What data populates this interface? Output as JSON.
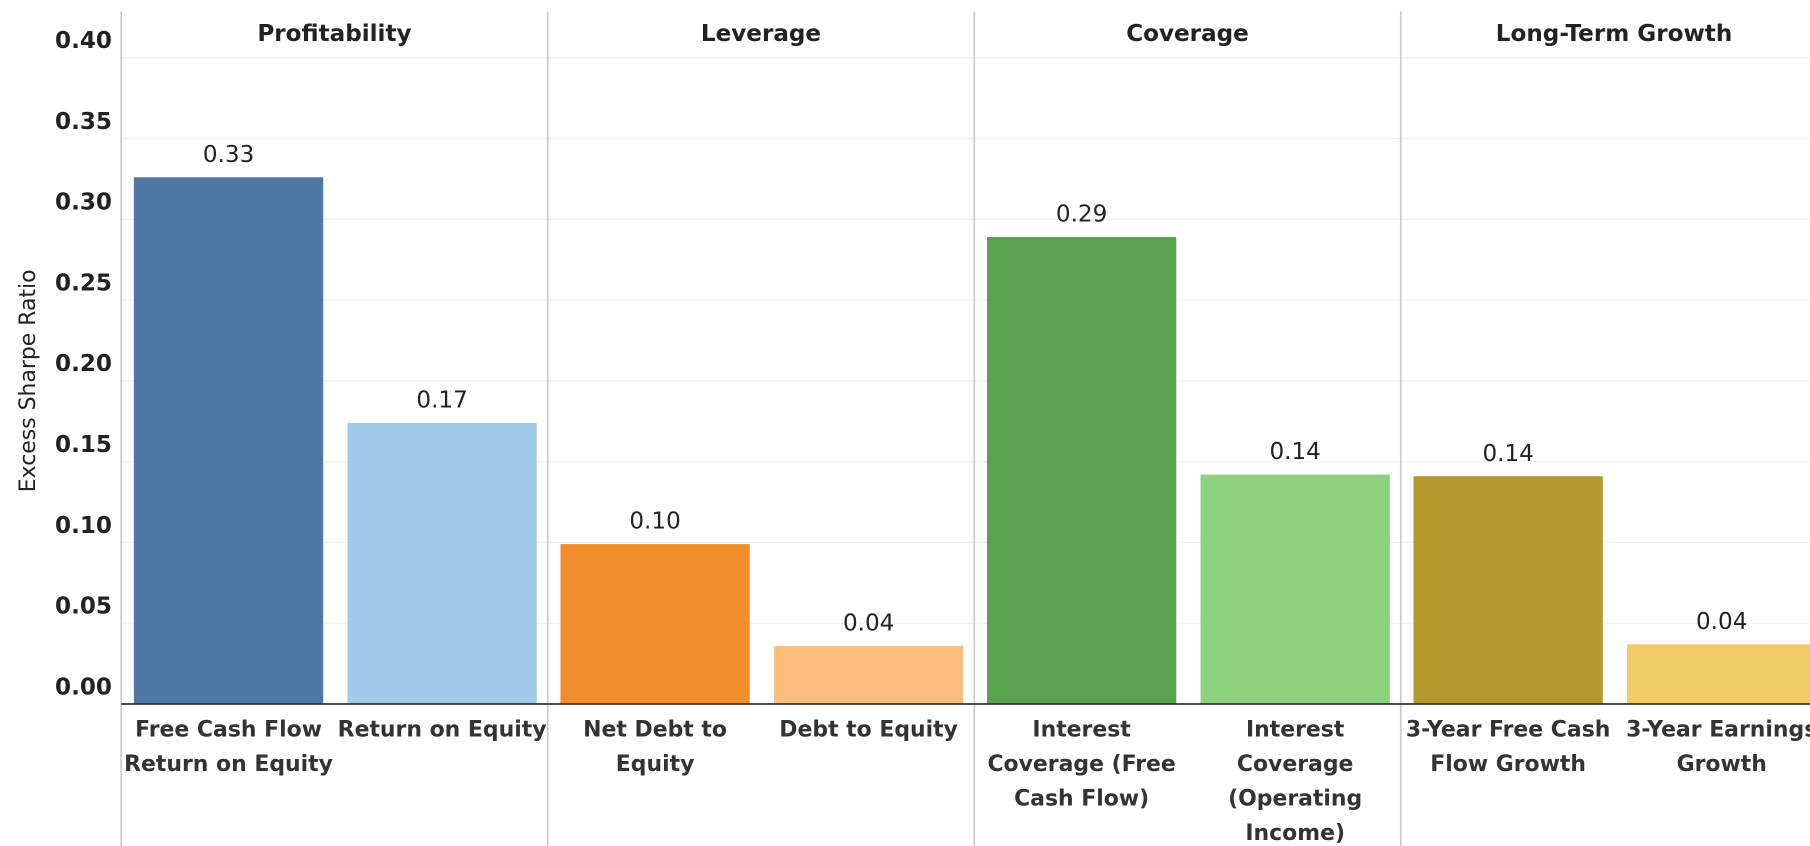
{
  "chart_data": {
    "type": "bar",
    "y_label": "Excess Sharpe Ratio",
    "ylim": [
      0,
      0.4
    ],
    "yticks": [
      {
        "value": 0,
        "label": "0.00"
      },
      {
        "value": 0.05,
        "label": "0.05"
      },
      {
        "value": 0.1,
        "label": "0.10"
      },
      {
        "value": 0.15,
        "label": "0.15"
      },
      {
        "value": 0.2,
        "label": "0.20"
      },
      {
        "value": 0.25,
        "label": "0.25"
      },
      {
        "value": 0.3,
        "label": "0.30"
      },
      {
        "value": 0.35,
        "label": "0.35"
      },
      {
        "value": 0.4,
        "label": "0.40"
      }
    ],
    "grid": true,
    "panels": [
      {
        "title": "Profitability",
        "categories": [
          "Free Cash Flow Return on Equity",
          "Return on Equity"
        ],
        "values": [
          0.326,
          0.174
        ],
        "value_labels": [
          "0.33",
          "0.17"
        ],
        "colors": [
          "#4e79a7",
          "#a0cbe8"
        ]
      },
      {
        "title": "Leverage",
        "categories": [
          "Net Debt to Equity",
          "Debt to Equity"
        ],
        "values": [
          0.099,
          0.036
        ],
        "value_labels": [
          "0.10",
          "0.04"
        ],
        "colors": [
          "#f28e2b",
          "#ffbe7d"
        ]
      },
      {
        "title": "Coverage",
        "categories": [
          "Interest Coverage (Free Cash Flow)",
          "Interest Coverage (Operating Income)"
        ],
        "values": [
          0.289,
          0.142
        ],
        "value_labels": [
          "0.29",
          "0.14"
        ],
        "colors": [
          "#59a14f",
          "#8cd17d"
        ]
      },
      {
        "title": "Long-Term Growth",
        "categories": [
          "3-Year Free Cash Flow Growth",
          "3-Year Earnings Growth"
        ],
        "values": [
          0.141,
          0.037
        ],
        "value_labels": [
          "0.14",
          "0.04"
        ],
        "colors": [
          "#b6992d",
          "#f1ce63"
        ]
      }
    ]
  }
}
